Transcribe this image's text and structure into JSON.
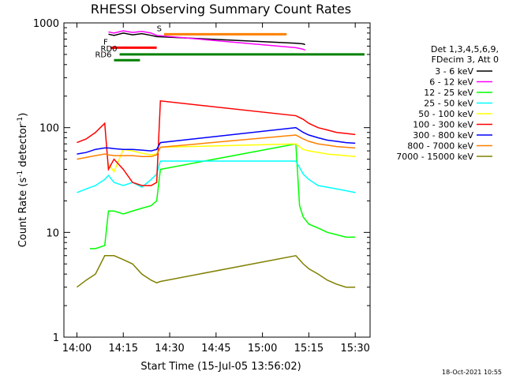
{
  "chart_data": {
    "type": "line",
    "title": "RHESSI Observing Summary Count Rates",
    "xlabel": "Start Time (15-Jul-05 13:56:02)",
    "ylabel_main": "Count Rate (s",
    "ylabel_sup": "-1",
    "ylabel_tail": " detector",
    "ylabel_end": ")",
    "y_scale": "log",
    "ylim": [
      1,
      1000
    ],
    "xlim_minutes": [
      13.93,
      15.58
    ],
    "x_ticks": [
      {
        "label": "14:00",
        "h": 14.0
      },
      {
        "label": "14:15",
        "h": 14.25
      },
      {
        "label": "14:30",
        "h": 14.5
      },
      {
        "label": "14:45",
        "h": 14.75
      },
      {
        "label": "15:00",
        "h": 15.0
      },
      {
        "label": "15:15",
        "h": 15.25
      },
      {
        "label": "15:30",
        "h": 15.5
      }
    ],
    "y_ticks": [
      {
        "label": "1",
        "v": 1
      },
      {
        "label": "10",
        "v": 10
      },
      {
        "label": "100",
        "v": 100
      },
      {
        "label": "1000",
        "v": 1000
      }
    ],
    "legend_header": [
      "Det 1,3,4,5,6,9,",
      "FDecim 3, Att 0"
    ],
    "legend_placement": "right",
    "series": [
      {
        "name": "3 - 6 keV",
        "color": "#000000",
        "values": [
          [
            14.17,
            780
          ],
          [
            14.2,
            760
          ],
          [
            14.25,
            800
          ],
          [
            14.3,
            770
          ],
          [
            14.35,
            790
          ],
          [
            14.4,
            760
          ],
          [
            14.43,
            740
          ],
          [
            15.18,
            640
          ],
          [
            15.22,
            630
          ],
          [
            15.23,
            620
          ]
        ]
      },
      {
        "name": "6 - 12 keV",
        "color": "#ff00ff",
        "values": [
          [
            14.17,
            820
          ],
          [
            14.2,
            800
          ],
          [
            14.25,
            840
          ],
          [
            14.3,
            810
          ],
          [
            14.35,
            830
          ],
          [
            14.4,
            800
          ],
          [
            14.43,
            760
          ],
          [
            15.18,
            580
          ],
          [
            15.22,
            560
          ],
          [
            15.23,
            550
          ]
        ]
      },
      {
        "name": "12 - 25 keV",
        "color": "#00ff00",
        "values": [
          [
            14.07,
            7
          ],
          [
            14.1,
            7
          ],
          [
            14.15,
            7.5
          ],
          [
            14.17,
            16
          ],
          [
            14.2,
            16
          ],
          [
            14.25,
            15
          ],
          [
            14.3,
            16
          ],
          [
            14.35,
            17
          ],
          [
            14.4,
            18
          ],
          [
            14.43,
            20
          ],
          [
            14.45,
            40
          ],
          [
            15.18,
            70
          ],
          [
            15.2,
            18
          ],
          [
            15.22,
            14
          ],
          [
            15.25,
            12
          ],
          [
            15.3,
            11
          ],
          [
            15.35,
            10
          ],
          [
            15.4,
            9.5
          ],
          [
            15.45,
            9
          ],
          [
            15.5,
            9
          ]
        ]
      },
      {
        "name": "25 - 50 keV",
        "color": "#00ffff",
        "values": [
          [
            14.0,
            24
          ],
          [
            14.05,
            26
          ],
          [
            14.1,
            28
          ],
          [
            14.15,
            32
          ],
          [
            14.17,
            35
          ],
          [
            14.2,
            30
          ],
          [
            14.25,
            28
          ],
          [
            14.3,
            30
          ],
          [
            14.35,
            27
          ],
          [
            14.4,
            32
          ],
          [
            14.43,
            36
          ],
          [
            14.45,
            48
          ],
          [
            15.18,
            48
          ],
          [
            15.22,
            36
          ],
          [
            15.25,
            32
          ],
          [
            15.3,
            28
          ],
          [
            15.35,
            27
          ],
          [
            15.4,
            26
          ],
          [
            15.45,
            25
          ],
          [
            15.5,
            24
          ]
        ]
      },
      {
        "name": "50 - 100 keV",
        "color": "#ffff00",
        "values": [
          [
            14.17,
            45
          ],
          [
            14.2,
            38
          ],
          [
            14.25,
            62
          ],
          [
            14.3,
            60
          ],
          [
            14.35,
            57
          ],
          [
            14.4,
            55
          ],
          [
            14.43,
            56
          ],
          [
            14.45,
            65
          ],
          [
            15.18,
            70
          ],
          [
            15.22,
            62
          ],
          [
            15.25,
            60
          ],
          [
            15.3,
            58
          ],
          [
            15.35,
            56
          ],
          [
            15.4,
            55
          ],
          [
            15.45,
            54
          ],
          [
            15.5,
            53
          ]
        ]
      },
      {
        "name": "100 - 300 keV",
        "color": "#ff0000",
        "values": [
          [
            14.0,
            72
          ],
          [
            14.05,
            78
          ],
          [
            14.1,
            90
          ],
          [
            14.15,
            110
          ],
          [
            14.17,
            40
          ],
          [
            14.2,
            50
          ],
          [
            14.25,
            40
          ],
          [
            14.3,
            30
          ],
          [
            14.35,
            28
          ],
          [
            14.4,
            28
          ],
          [
            14.43,
            30
          ],
          [
            14.45,
            180
          ],
          [
            15.18,
            130
          ],
          [
            15.22,
            120
          ],
          [
            15.25,
            110
          ],
          [
            15.3,
            100
          ],
          [
            15.35,
            95
          ],
          [
            15.4,
            90
          ],
          [
            15.45,
            88
          ],
          [
            15.5,
            86
          ]
        ]
      },
      {
        "name": "300 - 800 keV",
        "color": "#0000ff",
        "values": [
          [
            14.0,
            56
          ],
          [
            14.05,
            58
          ],
          [
            14.1,
            62
          ],
          [
            14.15,
            64
          ],
          [
            14.17,
            64
          ],
          [
            14.2,
            63
          ],
          [
            14.25,
            62
          ],
          [
            14.3,
            62
          ],
          [
            14.35,
            61
          ],
          [
            14.4,
            60
          ],
          [
            14.43,
            62
          ],
          [
            14.45,
            72
          ],
          [
            15.18,
            100
          ],
          [
            15.22,
            90
          ],
          [
            15.25,
            85
          ],
          [
            15.3,
            80
          ],
          [
            15.35,
            76
          ],
          [
            15.4,
            74
          ],
          [
            15.45,
            72
          ],
          [
            15.5,
            71
          ]
        ]
      },
      {
        "name": "800 - 7000 keV",
        "color": "#ff8000",
        "values": [
          [
            14.0,
            50
          ],
          [
            14.05,
            52
          ],
          [
            14.1,
            54
          ],
          [
            14.15,
            56
          ],
          [
            14.17,
            55
          ],
          [
            14.2,
            54
          ],
          [
            14.25,
            54
          ],
          [
            14.3,
            54
          ],
          [
            14.35,
            53
          ],
          [
            14.4,
            53
          ],
          [
            14.43,
            55
          ],
          [
            14.45,
            65
          ],
          [
            15.18,
            85
          ],
          [
            15.22,
            78
          ],
          [
            15.25,
            74
          ],
          [
            15.3,
            70
          ],
          [
            15.35,
            68
          ],
          [
            15.4,
            66
          ],
          [
            15.45,
            65
          ],
          [
            15.5,
            64
          ]
        ]
      },
      {
        "name": "7000 - 15000 keV",
        "color": "#808000",
        "values": [
          [
            14.0,
            3
          ],
          [
            14.05,
            3.5
          ],
          [
            14.1,
            4
          ],
          [
            14.15,
            6
          ],
          [
            14.17,
            6
          ],
          [
            14.2,
            6
          ],
          [
            14.25,
            5.5
          ],
          [
            14.3,
            5
          ],
          [
            14.35,
            4
          ],
          [
            14.4,
            3.5
          ],
          [
            14.43,
            3.3
          ],
          [
            14.45,
            3.4
          ],
          [
            15.18,
            6
          ],
          [
            15.22,
            5
          ],
          [
            15.25,
            4.5
          ],
          [
            15.3,
            4
          ],
          [
            15.35,
            3.5
          ],
          [
            15.4,
            3.2
          ],
          [
            15.45,
            3.0
          ],
          [
            15.5,
            3.0
          ]
        ]
      }
    ],
    "annotations": [
      {
        "label": "F",
        "color": "#ff0000",
        "start": 14.18,
        "end": 14.43,
        "level": 580
      },
      {
        "label": "RD0",
        "color": "#008000",
        "start": 14.23,
        "end": 15.55,
        "level": 500
      },
      {
        "label": "RD6",
        "color": "#008000",
        "start": 14.2,
        "end": 14.34,
        "level": 440
      },
      {
        "label": "S",
        "color": "#ff8000",
        "start": 14.47,
        "end": 15.13,
        "level": 780
      }
    ],
    "timestamp": "18-Oct-2021 10:55"
  }
}
